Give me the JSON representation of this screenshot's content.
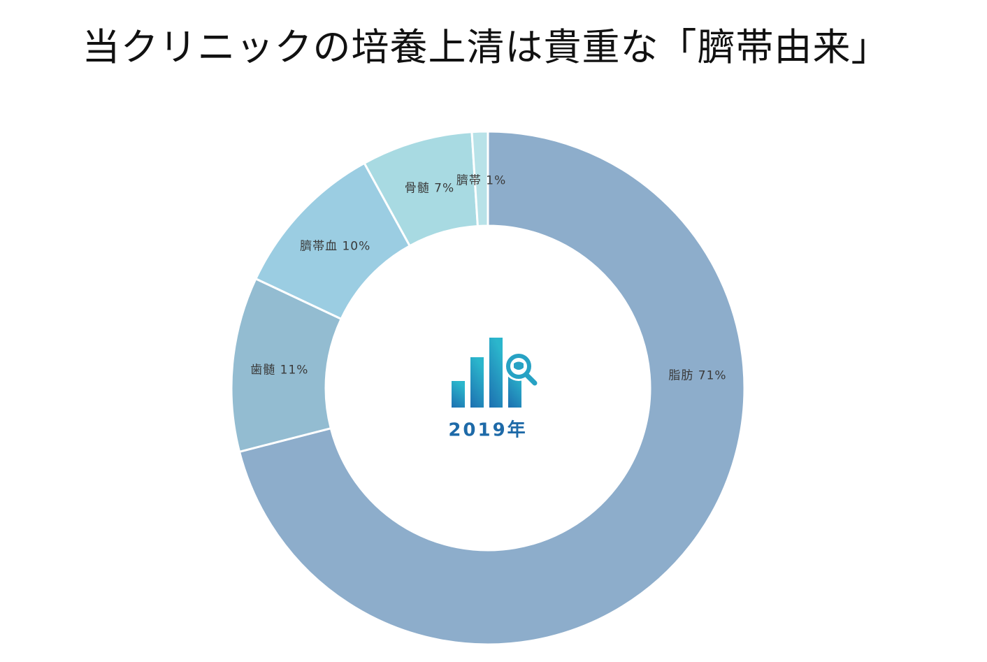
{
  "title": "当クリニックの培養上清は貴重な「臍帯由来」",
  "center": {
    "year_label": "2019年",
    "icon": "bar-chart-magnifier-icon",
    "color": "#1e6aa8"
  },
  "chart_data": {
    "type": "pie",
    "variant": "donut",
    "title": "当クリニックの培養上清は貴重な「臍帯由来」",
    "center_text": "2019年",
    "start_angle_deg": 0,
    "direction": "clockwise",
    "categories": [
      "脂肪",
      "歯髄",
      "臍帯血",
      "骨髄",
      "臍帯"
    ],
    "values": [
      71,
      11,
      10,
      7,
      1
    ],
    "unit": "%",
    "colors": [
      "#8DADCB",
      "#93BCD1",
      "#9BCDE2",
      "#A8DAE2",
      "#B8E2E8"
    ],
    "labels": [
      "脂肪 71%",
      "歯髄 11%",
      "臍帯血 10%",
      "骨髄 7%",
      "臍帯 1%"
    ],
    "legend": "none (inline labels)",
    "annotations": [
      "臍帯 1% label with leader line"
    ]
  }
}
